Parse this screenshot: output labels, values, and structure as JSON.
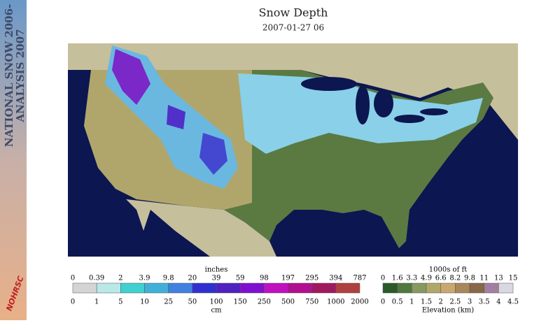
{
  "header": {
    "title": "Snow Depth",
    "date": "2007-01-27 06"
  },
  "sidebar": {
    "line1": "NATIONAL SNOW 2006-",
    "line2": "ANALYSIS 2007",
    "logo": "NOHRSC"
  },
  "snow_legend": {
    "top_unit": "inches",
    "bottom_unit": "cm",
    "top_labels": [
      0,
      0.39,
      2,
      3.9,
      9.8,
      20,
      39,
      59,
      98,
      197,
      295,
      394,
      787
    ],
    "bottom_labels": [
      0,
      1,
      5,
      10,
      25,
      50,
      100,
      150,
      250,
      500,
      750,
      1000,
      2000
    ],
    "colors": [
      "#d4d4d4",
      "#b8e8e8",
      "#40d0d0",
      "#40b0d8",
      "#4080e0",
      "#3030d0",
      "#5020c0",
      "#8010d0",
      "#c010c0",
      "#b01090",
      "#a01860",
      "#b04040"
    ]
  },
  "elevation_legend": {
    "top_unit": "1000s of ft",
    "bottom_unit": "Elevation (km)",
    "top_labels": [
      0,
      1.6,
      3.3,
      4.9,
      6.6,
      8.2,
      9.8,
      11,
      13,
      15
    ],
    "bottom_labels": [
      0,
      0.5,
      1,
      1.5,
      2,
      2.5,
      3,
      3.5,
      4,
      4.5
    ],
    "colors": [
      "#2a5a2a",
      "#507840",
      "#889860",
      "#b0a868",
      "#c8a870",
      "#a88858",
      "#886848",
      "#a080a0",
      "#d8d8e0"
    ]
  }
}
